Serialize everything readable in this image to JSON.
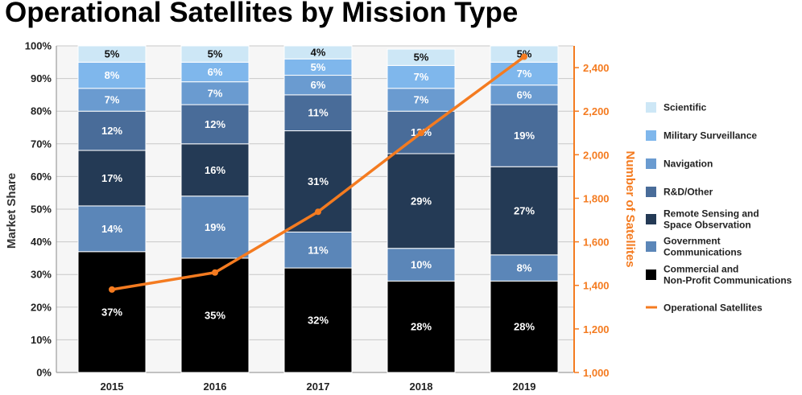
{
  "title": "Operational Satellites by Mission Type",
  "chart_data": {
    "type": "bar",
    "stacked": true,
    "categories": [
      "2015",
      "2016",
      "2017",
      "2018",
      "2019"
    ],
    "ylabel": "Market Share",
    "y2label": "Number of Satellites",
    "ylim": [
      0,
      100
    ],
    "y2lim": [
      1000,
      2500
    ],
    "y_ticks": [
      "0%",
      "10%",
      "20%",
      "30%",
      "40%",
      "50%",
      "60%",
      "70%",
      "80%",
      "90%",
      "100%"
    ],
    "y2_ticks": [
      "1,000",
      "1,200",
      "1,400",
      "1,600",
      "1,800",
      "2,000",
      "2,200",
      "2,400"
    ],
    "grid": true,
    "legend_position": "right",
    "series": [
      {
        "name": "Commercial and Non-Profit Communications",
        "color": "#000000",
        "values": [
          37,
          35,
          32,
          28,
          28
        ]
      },
      {
        "name": "Government Communications",
        "color": "#5b86b8",
        "values": [
          14,
          19,
          11,
          10,
          8
        ]
      },
      {
        "name": "Remote Sensing and Space Observation",
        "color": "#243a55",
        "values": [
          17,
          16,
          31,
          29,
          27
        ]
      },
      {
        "name": "R&D/Other",
        "color": "#496c99",
        "values": [
          12,
          12,
          11,
          13,
          19
        ]
      },
      {
        "name": "Navigation",
        "color": "#6a9bd0",
        "values": [
          7,
          7,
          6,
          7,
          6
        ]
      },
      {
        "name": "Military Surveillance",
        "color": "#7fb7ec",
        "values": [
          8,
          6,
          5,
          7,
          7
        ]
      },
      {
        "name": "Scientific",
        "color": "#cde7f6",
        "values": [
          5,
          5,
          4,
          5,
          5
        ]
      }
    ],
    "line_series": {
      "name": "Operational Satellites",
      "color": "#f47b20",
      "axis": "right",
      "values": [
        1381,
        1459,
        1738,
        2100,
        2450
      ]
    },
    "legend": [
      {
        "label_lines": [
          "Scientific"
        ],
        "series": "Scientific",
        "kind": "box"
      },
      {
        "label_lines": [
          "Military Surveillance"
        ],
        "series": "Military Surveillance",
        "kind": "box"
      },
      {
        "label_lines": [
          "Navigation"
        ],
        "series": "Navigation",
        "kind": "box"
      },
      {
        "label_lines": [
          "R&D/Other"
        ],
        "series": "R&D/Other",
        "kind": "box"
      },
      {
        "label_lines": [
          "Remote Sensing and",
          "Space Observation"
        ],
        "series": "Remote Sensing and Space Observation",
        "kind": "box"
      },
      {
        "label_lines": [
          "Government",
          "Communications"
        ],
        "series": "Government Communications",
        "kind": "box"
      },
      {
        "label_lines": [
          "Commercial and",
          "Non-Profit Communications"
        ],
        "series": "Commercial and Non-Profit Communications",
        "kind": "box"
      },
      {
        "label_lines": [
          "Operational Satellites"
        ],
        "series": "Operational Satellites",
        "kind": "line"
      }
    ]
  }
}
